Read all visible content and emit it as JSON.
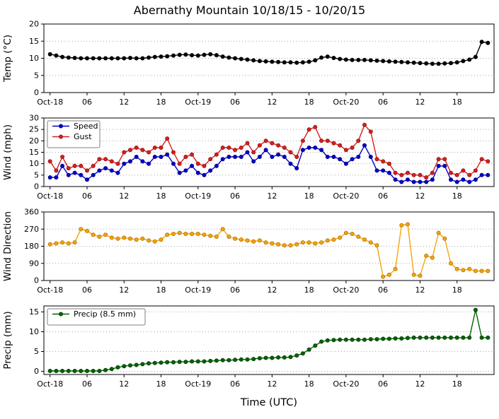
{
  "title": "Abernathy Mountain 10/18/15 - 10/20/15",
  "xlabel": "Time (UTC)",
  "axis": {
    "xlim": [
      -1,
      72
    ],
    "x_tick_positions": [
      0,
      6,
      12,
      18,
      24,
      30,
      36,
      42,
      48,
      54,
      60,
      66
    ],
    "x_tick_labels": [
      "Oct-18",
      "06",
      "12",
      "18",
      "Oct-19",
      "06",
      "12",
      "18",
      "Oct-20",
      "06",
      "12",
      "18"
    ]
  },
  "x_hours": [
    0,
    1,
    2,
    3,
    4,
    5,
    6,
    7,
    8,
    9,
    10,
    11,
    12,
    13,
    14,
    15,
    16,
    17,
    18,
    19,
    20,
    21,
    22,
    23,
    24,
    25,
    26,
    27,
    28,
    29,
    30,
    31,
    32,
    33,
    34,
    35,
    36,
    37,
    38,
    39,
    40,
    41,
    42,
    43,
    44,
    45,
    46,
    47,
    48,
    49,
    50,
    51,
    52,
    53,
    54,
    55,
    56,
    57,
    58,
    59,
    60,
    61,
    62,
    63,
    64,
    65,
    66,
    67,
    68,
    69,
    70,
    71
  ],
  "chart_data": [
    {
      "type": "line",
      "id": "temperature",
      "ylabel": "Temp (°C)",
      "ylim": [
        0,
        20
      ],
      "yticks": [
        0,
        5,
        10,
        15,
        20
      ],
      "grid": true,
      "series": [
        {
          "name": "Temp",
          "color": "#000000",
          "edge": "#000000",
          "values": [
            11.2,
            10.8,
            10.4,
            10.2,
            10.1,
            10.0,
            10.0,
            10.0,
            10.0,
            10.0,
            10.0,
            10.0,
            10.0,
            10.1,
            10.0,
            10.0,
            10.2,
            10.4,
            10.5,
            10.6,
            10.8,
            11.0,
            11.1,
            10.9,
            10.8,
            11.0,
            11.2,
            10.9,
            10.5,
            10.2,
            10.0,
            9.8,
            9.6,
            9.4,
            9.2,
            9.1,
            9.0,
            8.9,
            8.8,
            8.8,
            8.7,
            8.8,
            9.0,
            9.4,
            10.2,
            10.5,
            10.1,
            9.8,
            9.6,
            9.5,
            9.5,
            9.5,
            9.4,
            9.3,
            9.2,
            9.1,
            9.0,
            8.9,
            8.8,
            8.7,
            8.6,
            8.5,
            8.4,
            8.4,
            8.5,
            8.6,
            8.8,
            9.2,
            9.6,
            10.4,
            14.8,
            14.5
          ]
        }
      ]
    },
    {
      "type": "line",
      "id": "wind",
      "ylabel": "Wind (mph)",
      "ylim": [
        0,
        30
      ],
      "yticks": [
        0,
        5,
        10,
        15,
        20,
        25,
        30
      ],
      "grid": true,
      "legend": {
        "position": "top-left",
        "entries": [
          "Speed",
          "Gust"
        ]
      },
      "series": [
        {
          "name": "Speed",
          "color": "#0000cc",
          "edge": "#000088",
          "values": [
            4,
            4,
            9,
            5,
            6,
            5,
            3,
            5,
            7,
            8,
            7,
            6,
            10,
            11,
            13,
            11,
            10,
            13,
            13,
            14,
            10,
            6,
            7,
            9,
            6,
            5,
            7,
            9,
            12,
            13,
            13,
            13,
            15,
            11,
            13,
            16,
            13,
            14,
            13,
            10,
            8,
            16,
            17,
            17,
            16,
            13,
            13,
            12,
            10,
            12,
            13,
            18,
            13,
            7,
            7,
            6,
            3,
            2,
            3,
            2,
            2,
            2,
            3,
            9,
            9,
            3,
            2,
            3,
            2,
            3,
            5,
            5
          ]
        },
        {
          "name": "Gust",
          "color": "#d42020",
          "edge": "#991111",
          "values": [
            11,
            7,
            13,
            8,
            9,
            9,
            7,
            9,
            12,
            12,
            11,
            10,
            15,
            16,
            17,
            16,
            15,
            17,
            17,
            21,
            15,
            10,
            13,
            14,
            10,
            9,
            12,
            14,
            17,
            17,
            16,
            17,
            19,
            15,
            18,
            20,
            19,
            18,
            17,
            15,
            13,
            20,
            25,
            26,
            20,
            20,
            19,
            18,
            16,
            17,
            20,
            27,
            24,
            12,
            11,
            10,
            6,
            5,
            6,
            5,
            5,
            4,
            6,
            12,
            12,
            6,
            5,
            7,
            5,
            7,
            12,
            11
          ]
        }
      ]
    },
    {
      "type": "line",
      "id": "wind-direction",
      "ylabel": "Wind Direction",
      "ylim": [
        0,
        360
      ],
      "yticks": [
        0,
        90,
        180,
        270,
        360
      ],
      "grid": true,
      "series": [
        {
          "name": "Direction",
          "color": "#f5a40a",
          "edge": "#b37400",
          "values": [
            190,
            195,
            200,
            195,
            200,
            270,
            260,
            240,
            230,
            240,
            225,
            220,
            225,
            220,
            215,
            220,
            210,
            205,
            215,
            240,
            245,
            250,
            245,
            245,
            245,
            240,
            235,
            230,
            270,
            230,
            220,
            215,
            210,
            205,
            210,
            200,
            195,
            190,
            185,
            185,
            190,
            200,
            200,
            195,
            200,
            210,
            215,
            225,
            250,
            245,
            230,
            215,
            200,
            185,
            20,
            30,
            60,
            290,
            295,
            30,
            25,
            130,
            120,
            250,
            220,
            90,
            60,
            55,
            60,
            50,
            50,
            50
          ]
        }
      ]
    },
    {
      "type": "line",
      "id": "precipitation",
      "ylabel": "Precip (mm)",
      "ylim": [
        -0.8,
        16.5
      ],
      "yticks": [
        0,
        5,
        10,
        15
      ],
      "grid": true,
      "legend": {
        "position": "top-left",
        "entries": [
          "Precip (8.5 mm)"
        ]
      },
      "series": [
        {
          "name": "Precip (8.5 mm)",
          "color": "#006400",
          "edge": "#003d00",
          "values": [
            0.1,
            0.1,
            0.1,
            0.1,
            0.1,
            0.1,
            0.1,
            0.1,
            0.1,
            0.3,
            0.6,
            1.0,
            1.3,
            1.5,
            1.6,
            1.8,
            2.0,
            2.1,
            2.2,
            2.3,
            2.3,
            2.4,
            2.4,
            2.5,
            2.5,
            2.5,
            2.6,
            2.7,
            2.8,
            2.8,
            2.9,
            3.0,
            3.0,
            3.1,
            3.3,
            3.4,
            3.4,
            3.5,
            3.5,
            3.6,
            4.0,
            4.5,
            5.5,
            6.5,
            7.5,
            7.8,
            7.9,
            8.0,
            8.0,
            8.0,
            8.0,
            8.0,
            8.1,
            8.1,
            8.2,
            8.2,
            8.3,
            8.3,
            8.4,
            8.5,
            8.5,
            8.5,
            8.5,
            8.5,
            8.5,
            8.5,
            8.5,
            8.5,
            8.5,
            15.5,
            8.5,
            8.5
          ]
        }
      ]
    }
  ]
}
